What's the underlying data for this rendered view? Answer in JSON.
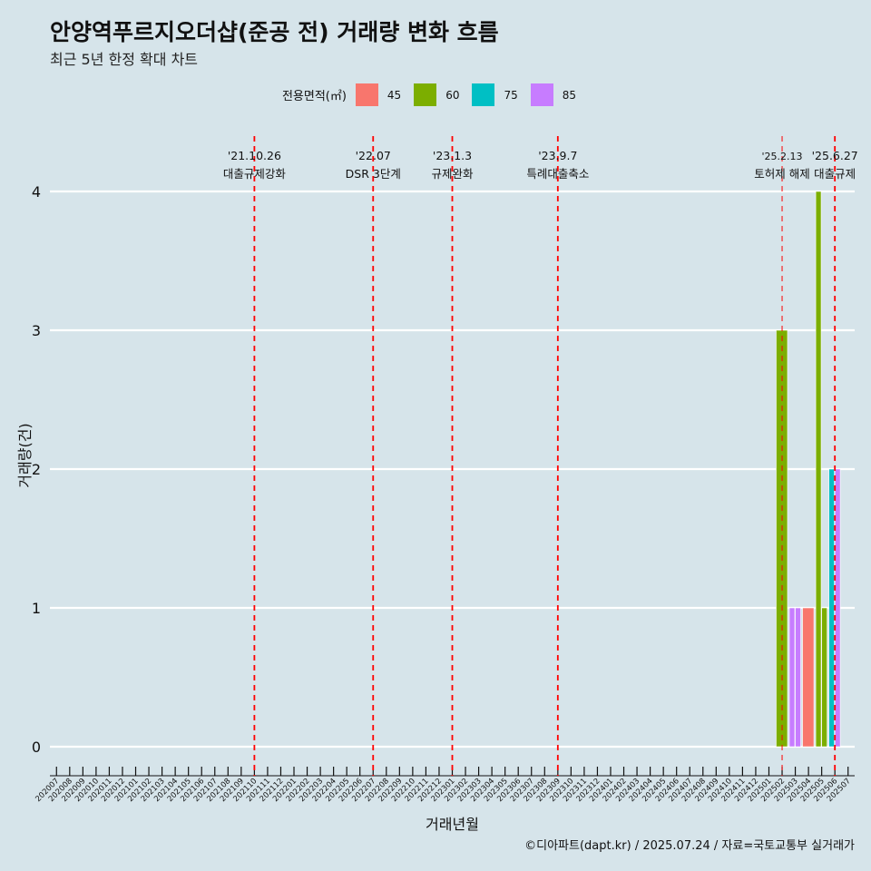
{
  "title": "안양역푸르지오더샵(준공 전) 거래량 변화 흐름",
  "subtitle": "최근 5년 한정 확대 차트",
  "caption": "©디아파트(dapt.kr) / 2025.07.24 / 자료=국토교통부 실거래가",
  "colors": {
    "45": "#f8766d",
    "60": "#7cae00",
    "75": "#00bfc4",
    "85": "#c77cff",
    "vline": "#ff0000",
    "grid": "#ffffff",
    "background": "#d6e4ea"
  },
  "chart_data": {
    "type": "bar",
    "xlabel": "거래년월",
    "ylabel": "거래량(건)",
    "ylim": [
      0,
      4
    ],
    "yticks": [
      0,
      1,
      2,
      3,
      4
    ],
    "grid": true,
    "legend_title": "전용면적(㎡)",
    "legend_placement": "top",
    "categories": [
      "202007",
      "202008",
      "202009",
      "202010",
      "202011",
      "202012",
      "202101",
      "202102",
      "202103",
      "202104",
      "202105",
      "202106",
      "202107",
      "202108",
      "202109",
      "202110",
      "202111",
      "202112",
      "202201",
      "202202",
      "202203",
      "202204",
      "202205",
      "202206",
      "202207",
      "202208",
      "202209",
      "202210",
      "202211",
      "202212",
      "202301",
      "202302",
      "202303",
      "202304",
      "202305",
      "202306",
      "202307",
      "202308",
      "202309",
      "202310",
      "202311",
      "202312",
      "202401",
      "202402",
      "202403",
      "202404",
      "202405",
      "202406",
      "202407",
      "202408",
      "202409",
      "202410",
      "202411",
      "202412",
      "202501",
      "202502",
      "202503",
      "202504",
      "202505",
      "202506",
      "202507"
    ],
    "series": [
      {
        "name": "45",
        "points": [
          {
            "x": "202504",
            "y": 1
          }
        ]
      },
      {
        "name": "60",
        "points": [
          {
            "x": "202502",
            "y": 3
          },
          {
            "x": "202505",
            "y": 4
          },
          {
            "x": "202505",
            "y": 1
          }
        ]
      },
      {
        "name": "75",
        "points": [
          {
            "x": "202506",
            "y": 2
          }
        ]
      },
      {
        "name": "85",
        "points": [
          {
            "x": "202503",
            "y": 1
          },
          {
            "x": "202503",
            "y": 1
          },
          {
            "x": "202506",
            "y": 2
          }
        ]
      }
    ],
    "annotations": [
      {
        "x": "202110",
        "date": "'21.10.26",
        "label": "대출규제강화"
      },
      {
        "x": "202207",
        "date": "'22.07",
        "label": "DSR 3단계"
      },
      {
        "x": "202301",
        "date": "'23.1.3",
        "label": "규제완화"
      },
      {
        "x": "202309",
        "date": "'23.9.7",
        "label": "특례대출축소"
      },
      {
        "x": "202502",
        "date": "'25.2.13",
        "label": "토허제 해제"
      },
      {
        "x": "202506",
        "date": "'25.6.27",
        "label": "대출규제"
      }
    ]
  }
}
